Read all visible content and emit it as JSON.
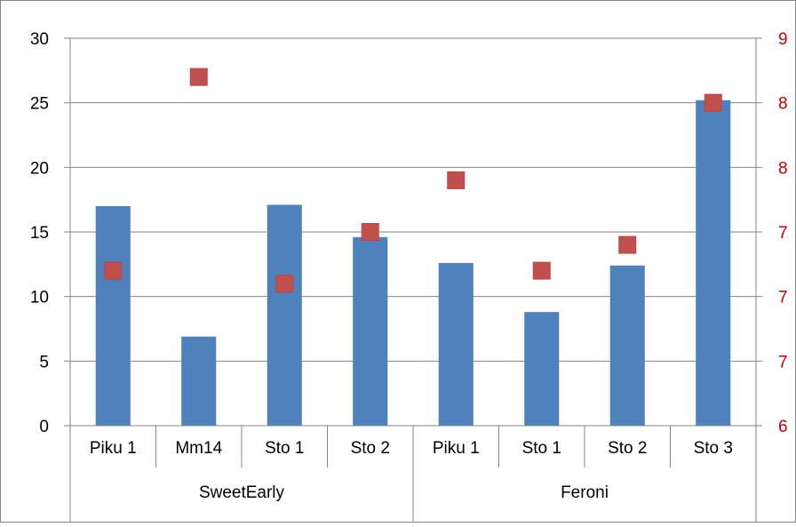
{
  "chart_data": {
    "type": "bar",
    "groups": [
      {
        "label": "SweetEarly",
        "categories": [
          "Piku 1",
          "Mm14",
          "Sto 1",
          "Sto 2"
        ]
      },
      {
        "label": "Feroni",
        "categories": [
          "Piku 1",
          "Sto 1",
          "Sto 2",
          "Sto 3"
        ]
      }
    ],
    "categories": [
      "Piku 1",
      "Mm14",
      "Sto 1",
      "Sto 2",
      "Piku 1",
      "Sto 1",
      "Sto 2",
      "Sto 3"
    ],
    "series": [
      {
        "type": "bar",
        "axis": "left",
        "color": "#4F81BD",
        "values": [
          17.0,
          6.9,
          17.1,
          14.6,
          12.6,
          8.8,
          12.4,
          25.2
        ]
      },
      {
        "type": "scatter",
        "axis": "right",
        "color": "#C0504D",
        "marker": "square",
        "values": [
          7.2,
          8.7,
          7.1,
          7.5,
          7.9,
          7.2,
          7.4,
          8.5
        ]
      }
    ],
    "y_left": {
      "ylim": [
        0,
        30
      ],
      "ticks": [
        0,
        5,
        10,
        15,
        20,
        25,
        30
      ],
      "tick_labels": [
        "0",
        "5",
        "10",
        "15",
        "20",
        "25",
        "30"
      ]
    },
    "y_right": {
      "ylim": [
        6,
        9
      ],
      "tick_values": [
        6,
        6.5,
        7,
        7.5,
        8,
        8.5,
        9
      ],
      "tick_labels": [
        "6",
        "7",
        "7",
        "7",
        "8",
        "8",
        "9"
      ],
      "color": "#C00000"
    },
    "grid": true,
    "legend": "none"
  }
}
